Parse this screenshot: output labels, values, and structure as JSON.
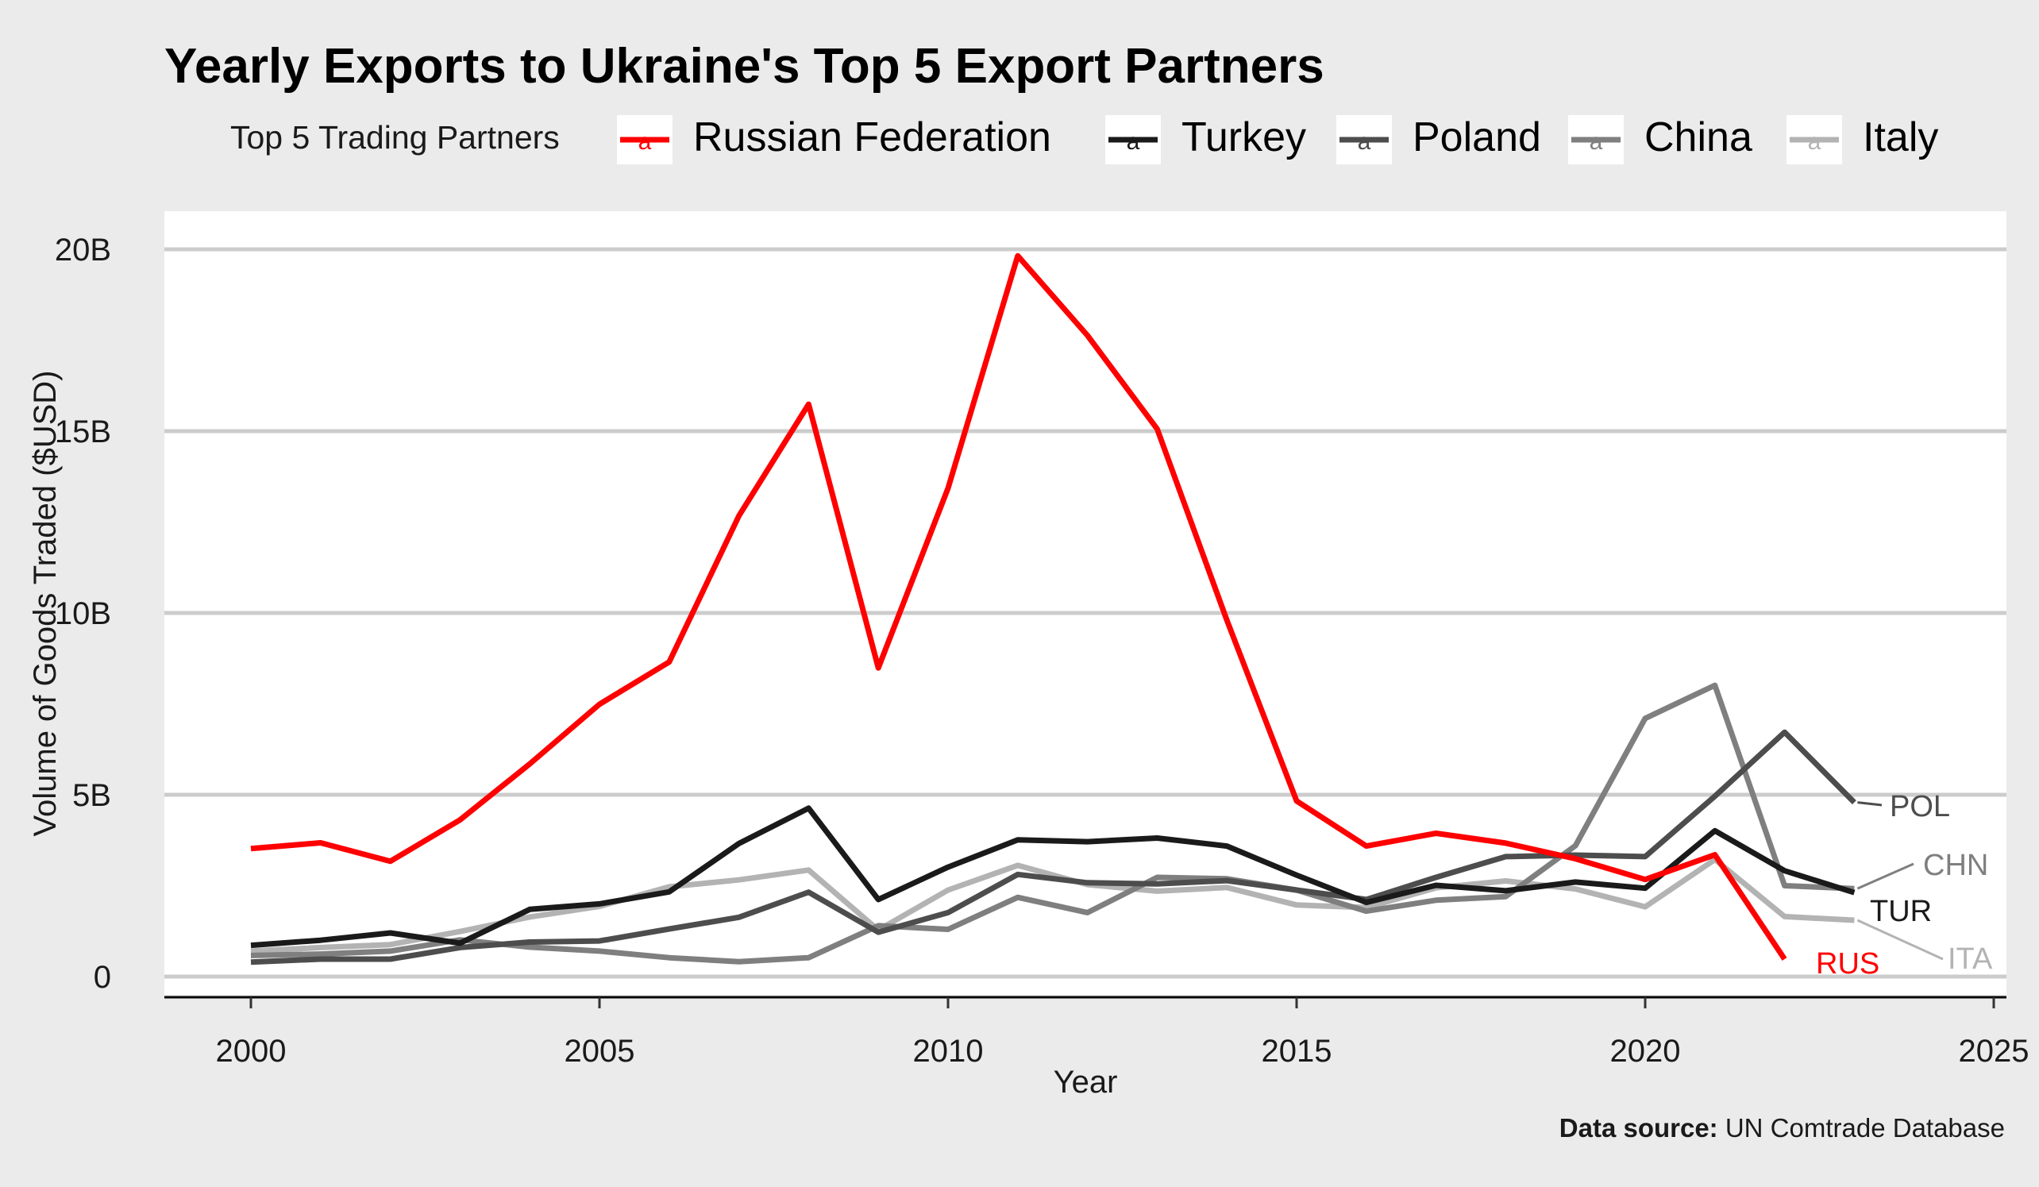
{
  "chart_data": {
    "type": "line",
    "title": "Yearly Exports to Ukraine's Top 5 Export Partners",
    "xlabel": "Year",
    "ylabel": "Volume of Goods Traded ($USD)",
    "legend_title": "Top 5 Trading Partners",
    "legend_key_glyph": "a",
    "legend_position": "top",
    "grid": "horizontal major",
    "xlim": [
      2000,
      2025
    ],
    "ylim": [
      0,
      20000000000
    ],
    "x_ticks": [
      2000,
      2005,
      2010,
      2015,
      2020,
      2025
    ],
    "y_ticks": [
      0,
      5000000000,
      10000000000,
      15000000000,
      20000000000
    ],
    "y_tick_labels": [
      "0",
      "5B",
      "10B",
      "15B",
      "20B"
    ],
    "caption_bold": "Data source:",
    "caption_text": " UN Comtrade Database",
    "series": [
      {
        "name": "Russian Federation",
        "label": "RUS",
        "color": "#ff0000",
        "x": [
          2000,
          2001,
          2002,
          2003,
          2004,
          2005,
          2006,
          2007,
          2008,
          2009,
          2010,
          2011,
          2012,
          2013,
          2014,
          2015,
          2016,
          2017,
          2018,
          2019,
          2020,
          2021,
          2022
        ],
        "values": [
          3.52,
          3.68,
          3.17,
          4.31,
          5.85,
          7.49,
          8.65,
          12.67,
          15.74,
          8.49,
          13.43,
          19.82,
          17.63,
          15.06,
          9.8,
          4.83,
          3.59,
          3.94,
          3.67,
          3.24,
          2.67,
          3.35,
          0.48
        ]
      },
      {
        "name": "Turkey",
        "label": "TUR",
        "color": "#1a1a1a",
        "x": [
          2000,
          2001,
          2002,
          2003,
          2004,
          2005,
          2006,
          2007,
          2008,
          2009,
          2010,
          2011,
          2012,
          2013,
          2014,
          2015,
          2016,
          2017,
          2018,
          2019,
          2020,
          2021,
          2022,
          2023
        ],
        "values": [
          0.86,
          1.0,
          1.2,
          0.92,
          1.85,
          2.0,
          2.33,
          3.66,
          4.63,
          2.12,
          3.01,
          3.76,
          3.71,
          3.81,
          3.59,
          2.79,
          2.04,
          2.51,
          2.36,
          2.6,
          2.43,
          4.01,
          2.91,
          2.31
        ]
      },
      {
        "name": "Poland",
        "label": "POL",
        "color": "#4d4d4d",
        "x": [
          2000,
          2001,
          2002,
          2003,
          2004,
          2005,
          2006,
          2007,
          2008,
          2009,
          2010,
          2011,
          2012,
          2013,
          2014,
          2015,
          2016,
          2017,
          2018,
          2019,
          2020,
          2021,
          2022,
          2023
        ],
        "values": [
          0.4,
          0.48,
          0.48,
          0.8,
          0.95,
          0.98,
          1.31,
          1.63,
          2.32,
          1.22,
          1.76,
          2.81,
          2.58,
          2.55,
          2.64,
          2.38,
          2.12,
          2.73,
          3.3,
          3.34,
          3.3,
          4.96,
          6.72,
          4.79
        ]
      },
      {
        "name": "China",
        "label": "CHN",
        "color": "#7f7f7f",
        "x": [
          2000,
          2001,
          2002,
          2003,
          2004,
          2005,
          2006,
          2007,
          2008,
          2009,
          2010,
          2011,
          2012,
          2013,
          2014,
          2015,
          2016,
          2017,
          2018,
          2019,
          2020,
          2021,
          2022,
          2023
        ],
        "values": [
          0.58,
          0.62,
          0.7,
          1.01,
          0.81,
          0.7,
          0.52,
          0.41,
          0.52,
          1.4,
          1.3,
          2.18,
          1.76,
          2.73,
          2.69,
          2.38,
          1.8,
          2.1,
          2.2,
          3.6,
          7.1,
          8.01,
          2.5,
          2.42
        ]
      },
      {
        "name": "Italy",
        "label": "ITA",
        "color": "#b3b3b3",
        "x": [
          2000,
          2001,
          2002,
          2003,
          2004,
          2005,
          2006,
          2007,
          2008,
          2009,
          2010,
          2011,
          2012,
          2013,
          2014,
          2015,
          2016,
          2017,
          2018,
          2019,
          2020,
          2021,
          2022,
          2023
        ],
        "values": [
          0.7,
          0.8,
          0.88,
          1.24,
          1.64,
          1.93,
          2.47,
          2.66,
          2.93,
          1.28,
          2.38,
          3.06,
          2.53,
          2.35,
          2.45,
          1.97,
          1.9,
          2.44,
          2.63,
          2.41,
          1.92,
          3.22,
          1.65,
          1.55
        ]
      }
    ]
  }
}
